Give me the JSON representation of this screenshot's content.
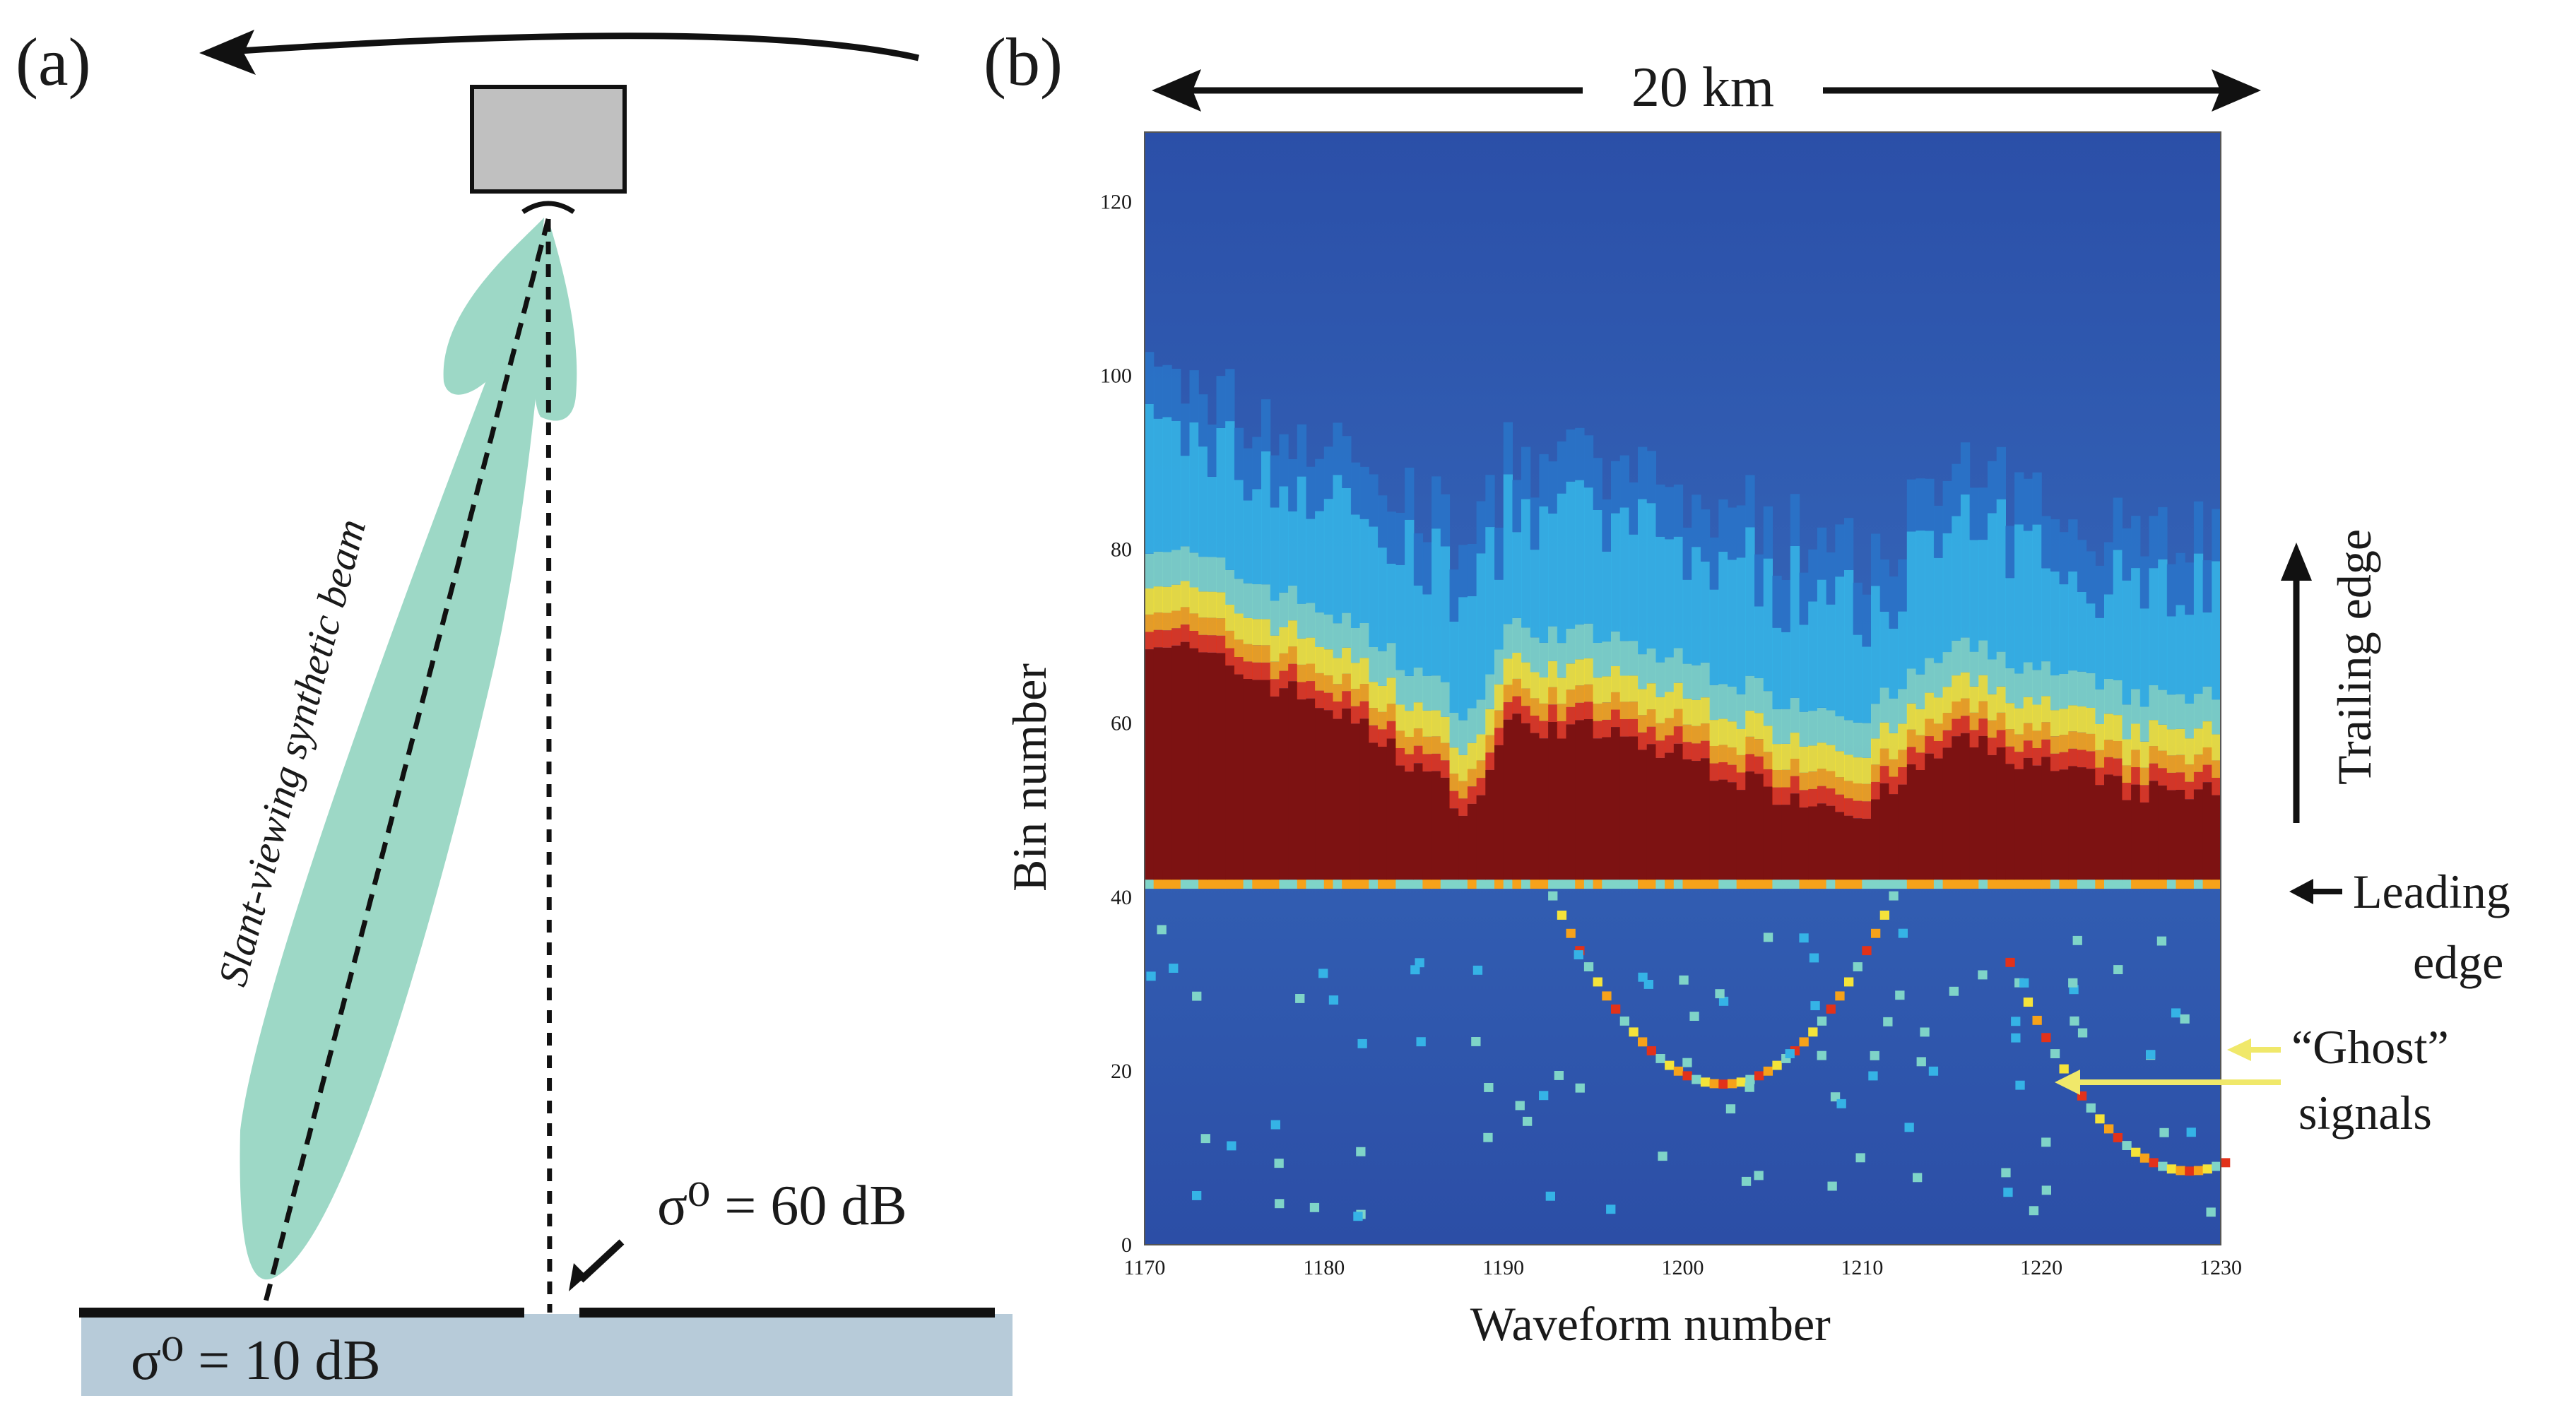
{
  "panel_a": {
    "label": "(a)",
    "beam_label": "Slant-viewing synthetic beam",
    "sigma_high": "σ⁰ = 60 dB",
    "sigma_low": "σ⁰ = 10 dB",
    "colors": {
      "beam": "#9dd8c6",
      "antenna": "#c0c0c0",
      "water": "#b7cbd9",
      "ink": "#111111"
    }
  },
  "panel_b": {
    "label": "(b)",
    "distance_label": "20 km",
    "xlabel": "Waveform  number",
    "ylabel": "Bin  number",
    "trailing_label": "Trailing edge",
    "leading_label_1": "Leading",
    "leading_label_2": "edge",
    "ghost_label_1": "“Ghost”",
    "ghost_label_2": "signals",
    "colors": {
      "arrow_ghost": "#f0e86a",
      "ink": "#111111"
    }
  },
  "chart_data": {
    "type": "heatmap",
    "title": "",
    "xlabel": "Waveform  number",
    "ylabel": "Bin  number",
    "xlim": [
      1170,
      1230
    ],
    "ylim": [
      0,
      128
    ],
    "xticks": [
      "1170",
      "1180",
      "1190",
      "1200",
      "1210",
      "1220",
      "1230"
    ],
    "yticks": [
      "0",
      "20",
      "40",
      "60",
      "80",
      "100",
      "120"
    ],
    "colormap": [
      "#1e3f9a",
      "#2a73c8",
      "#35b3e6",
      "#7fd4c8",
      "#f4e33a",
      "#f6a21a",
      "#e2321a",
      "#7d1212"
    ],
    "leading_edge_bin": 42,
    "trailing_edge_top_bins": [
      {
        "waveform": 1170,
        "bin": 70
      },
      {
        "waveform": 1175,
        "bin": 66
      },
      {
        "waveform": 1180,
        "bin": 62
      },
      {
        "waveform": 1185,
        "bin": 55
      },
      {
        "waveform": 1188,
        "bin": 50
      },
      {
        "waveform": 1190,
        "bin": 60
      },
      {
        "waveform": 1195,
        "bin": 59
      },
      {
        "waveform": 1200,
        "bin": 56
      },
      {
        "waveform": 1205,
        "bin": 52
      },
      {
        "waveform": 1210,
        "bin": 50
      },
      {
        "waveform": 1215,
        "bin": 58
      },
      {
        "waveform": 1220,
        "bin": 55
      },
      {
        "waveform": 1225,
        "bin": 52
      },
      {
        "waveform": 1230,
        "bin": 52
      }
    ],
    "ghost_arcs": [
      {
        "vertex_waveform": 1202,
        "vertex_bin": 18
      },
      {
        "vertex_waveform": 1228,
        "vertex_bin": 8
      }
    ]
  }
}
